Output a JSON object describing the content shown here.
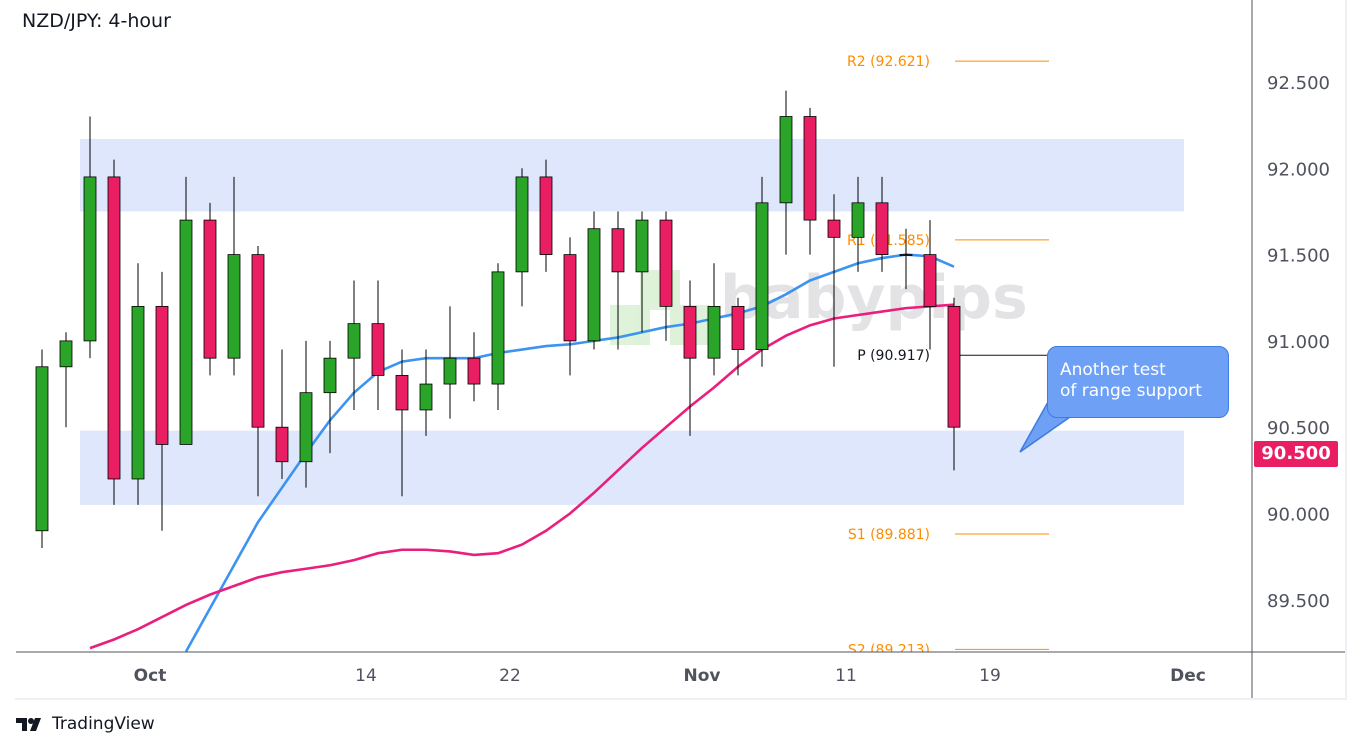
{
  "title": "NZD/JPY: 4-hour",
  "logo": {
    "text": "TradingView",
    "icon": "tradingview-logo-icon"
  },
  "watermark": {
    "text": "babypips",
    "icon": "babypips-cubes-icon"
  },
  "callout": {
    "line1": "Another test",
    "line2": "of range support"
  },
  "last_price": {
    "label": "90.500",
    "color": "#e91e63"
  },
  "colors": {
    "up": "#2aa52a",
    "down": "#e91e63",
    "ma_fast": "#3d94f0",
    "ma_slow": "#e91e7d",
    "zone": "#dfe7fc",
    "pivot_r_s": "#ff8c00",
    "pivot_p": "#131722"
  },
  "chart_data": {
    "type": "candlestick",
    "title": "NZD/JPY: 4-hour",
    "ylim": [
      89.2,
      92.98
    ],
    "grid": false,
    "y_ticks": [
      "92.500",
      "92.000",
      "91.500",
      "91.000",
      "90.500",
      "90.000",
      "89.500"
    ],
    "x_ticks": [
      {
        "label": "Oct",
        "date": "Oct 1"
      },
      {
        "label": "14",
        "date": "Oct 14"
      },
      {
        "label": "22",
        "date": "Oct 22"
      },
      {
        "label": "Nov",
        "date": "Nov 1"
      },
      {
        "label": "11",
        "date": "Nov 11"
      },
      {
        "label": "19",
        "date": "Nov 19"
      },
      {
        "label": "Dec",
        "date": "Dec 1"
      }
    ],
    "dates": [
      "Sep 24",
      "Sep 25",
      "Sep 26",
      "Sep 27",
      "Sep 30",
      "Oct 1",
      "Oct 2",
      "Oct 3",
      "Oct 4",
      "Oct 7",
      "Oct 8",
      "Oct 9",
      "Oct 10",
      "Oct 11",
      "Oct 14",
      "Oct 15",
      "Oct 16",
      "Oct 17",
      "Oct 18",
      "Oct 21",
      "Oct 22",
      "Oct 23",
      "Oct 24",
      "Oct 25",
      "Oct 28",
      "Oct 29",
      "Oct 30",
      "Oct 31",
      "Nov 1",
      "Nov 4",
      "Nov 5",
      "Nov 6",
      "Nov 7",
      "Nov 8",
      "Nov 11",
      "Nov 12",
      "Nov 13",
      "Nov 14",
      "Nov 15",
      "Nov 18",
      "Nov 19",
      "Nov 20",
      "Nov 21",
      "Nov 22",
      "Nov 25",
      "Nov 26",
      "Nov 27",
      "Nov 28",
      "Dec 1"
    ],
    "candles": [
      [
        "Sep 24",
        89.9,
        90.95,
        89.8,
        90.85
      ],
      [
        "Sep 25",
        90.85,
        91.05,
        90.5,
        91.0
      ],
      [
        "Sep 26",
        91.0,
        92.3,
        90.9,
        91.95
      ],
      [
        "Sep 27",
        91.95,
        92.05,
        90.05,
        90.2
      ],
      [
        "Sep 30",
        90.2,
        91.45,
        90.05,
        91.2
      ],
      [
        "Oct 1",
        91.2,
        91.4,
        89.9,
        90.4
      ],
      [
        "Oct 2",
        90.4,
        91.95,
        90.4,
        91.7
      ],
      [
        "Oct 3",
        91.7,
        91.8,
        90.8,
        90.9
      ],
      [
        "Oct 4",
        90.9,
        91.95,
        90.8,
        91.5
      ],
      [
        "Oct 7",
        91.5,
        91.55,
        90.1,
        90.5
      ],
      [
        "Oct 8",
        90.5,
        90.95,
        90.2,
        90.3
      ],
      [
        "Oct 9",
        90.3,
        91.0,
        90.15,
        90.7
      ],
      [
        "Oct 10",
        90.7,
        91.0,
        90.35,
        90.9
      ],
      [
        "Oct 11",
        90.9,
        91.35,
        90.6,
        91.1
      ],
      [
        "Oct 14",
        91.1,
        91.35,
        90.6,
        90.8
      ],
      [
        "Oct 15",
        90.8,
        90.95,
        90.1,
        90.6
      ],
      [
        "Oct 16",
        90.6,
        90.95,
        90.45,
        90.75
      ],
      [
        "Oct 17",
        90.75,
        91.2,
        90.55,
        90.9
      ],
      [
        "Oct 18",
        90.9,
        91.05,
        90.65,
        90.75
      ],
      [
        "Oct 21",
        90.75,
        91.45,
        90.6,
        91.4
      ],
      [
        "Oct 22",
        91.4,
        92.0,
        91.2,
        91.95
      ],
      [
        "Oct 23",
        91.95,
        92.05,
        91.4,
        91.5
      ],
      [
        "Oct 24",
        91.5,
        91.6,
        90.8,
        91.0
      ],
      [
        "Oct 25",
        91.0,
        91.75,
        90.95,
        91.65
      ],
      [
        "Oct 28",
        91.65,
        91.75,
        90.95,
        91.4
      ],
      [
        "Oct 29",
        91.4,
        91.75,
        91.05,
        91.7
      ],
      [
        "Oct 30",
        91.7,
        91.75,
        91.0,
        91.2
      ],
      [
        "Oct 31",
        91.2,
        91.35,
        90.45,
        90.9
      ],
      [
        "Nov 1",
        90.9,
        91.45,
        90.8,
        91.2
      ],
      [
        "Nov 4",
        91.2,
        91.25,
        90.8,
        90.95
      ],
      [
        "Nov 5",
        90.95,
        91.95,
        90.85,
        91.8
      ],
      [
        "Nov 6",
        91.8,
        92.45,
        91.5,
        92.3
      ],
      [
        "Nov 7",
        92.3,
        92.35,
        91.5,
        91.7
      ],
      [
        "Nov 8",
        91.7,
        91.85,
        90.85,
        91.6
      ],
      [
        "Nov 11",
        91.6,
        91.95,
        91.4,
        91.8
      ],
      [
        "Nov 12",
        91.8,
        91.95,
        91.4,
        91.5
      ],
      [
        "Nov 13",
        91.5,
        91.65,
        91.3,
        91.5
      ],
      [
        "Nov 14",
        91.5,
        91.7,
        90.95,
        91.2
      ],
      [
        "Nov 15",
        91.2,
        91.25,
        90.25,
        90.5
      ]
    ],
    "moving_averages": [
      {
        "color": "#3d94f0",
        "points": [
          [
            "Oct 2",
            89.2
          ],
          [
            "Oct 3",
            89.45
          ],
          [
            "Oct 4",
            89.7
          ],
          [
            "Oct 7",
            89.95
          ],
          [
            "Oct 8",
            90.15
          ],
          [
            "Oct 9",
            90.35
          ],
          [
            "Oct 10",
            90.54
          ],
          [
            "Oct 11",
            90.7
          ],
          [
            "Oct 14",
            90.82
          ],
          [
            "Oct 15",
            90.88
          ],
          [
            "Oct 16",
            90.9
          ],
          [
            "Oct 17",
            90.9
          ],
          [
            "Oct 18",
            90.9
          ],
          [
            "Oct 21",
            90.93
          ],
          [
            "Oct 22",
            90.95
          ],
          [
            "Oct 23",
            90.97
          ],
          [
            "Oct 24",
            90.98
          ],
          [
            "Oct 25",
            91.0
          ],
          [
            "Oct 28",
            91.02
          ],
          [
            "Oct 29",
            91.05
          ],
          [
            "Oct 30",
            91.08
          ],
          [
            "Oct 31",
            91.1
          ],
          [
            "Nov 1",
            91.13
          ],
          [
            "Nov 4",
            91.16
          ],
          [
            "Nov 5",
            91.2
          ],
          [
            "Nov 6",
            91.27
          ],
          [
            "Nov 7",
            91.35
          ],
          [
            "Nov 8",
            91.4
          ],
          [
            "Nov 11",
            91.45
          ],
          [
            "Nov 12",
            91.48
          ],
          [
            "Nov 13",
            91.5
          ],
          [
            "Nov 14",
            91.49
          ],
          [
            "Nov 15",
            91.43
          ]
        ]
      },
      {
        "color": "#e91e7d",
        "points": [
          [
            "Sep 26",
            89.22
          ],
          [
            "Sep 27",
            89.27
          ],
          [
            "Sep 30",
            89.33
          ],
          [
            "Oct 1",
            89.4
          ],
          [
            "Oct 2",
            89.47
          ],
          [
            "Oct 3",
            89.53
          ],
          [
            "Oct 4",
            89.58
          ],
          [
            "Oct 7",
            89.63
          ],
          [
            "Oct 8",
            89.66
          ],
          [
            "Oct 9",
            89.68
          ],
          [
            "Oct 10",
            89.7
          ],
          [
            "Oct 11",
            89.73
          ],
          [
            "Oct 14",
            89.77
          ],
          [
            "Oct 15",
            89.79
          ],
          [
            "Oct 16",
            89.79
          ],
          [
            "Oct 17",
            89.78
          ],
          [
            "Oct 18",
            89.76
          ],
          [
            "Oct 21",
            89.77
          ],
          [
            "Oct 22",
            89.82
          ],
          [
            "Oct 23",
            89.9
          ],
          [
            "Oct 24",
            90.0
          ],
          [
            "Oct 25",
            90.12
          ],
          [
            "Oct 28",
            90.25
          ],
          [
            "Oct 29",
            90.38
          ],
          [
            "Oct 30",
            90.5
          ],
          [
            "Oct 31",
            90.62
          ],
          [
            "Nov 1",
            90.73
          ],
          [
            "Nov 4",
            90.85
          ],
          [
            "Nov 5",
            90.95
          ],
          [
            "Nov 6",
            91.03
          ],
          [
            "Nov 7",
            91.09
          ],
          [
            "Nov 8",
            91.13
          ],
          [
            "Nov 11",
            91.15
          ],
          [
            "Nov 12",
            91.17
          ],
          [
            "Nov 13",
            91.19
          ],
          [
            "Nov 14",
            91.2
          ],
          [
            "Nov 15",
            91.21
          ]
        ]
      }
    ],
    "zones": [
      {
        "from": 91.75,
        "to": 92.17,
        "start": "Sep 26",
        "end": "Nov 28"
      },
      {
        "from": 90.05,
        "to": 90.48,
        "start": "Sep 26",
        "end": "Nov 28"
      }
    ],
    "pivots": [
      {
        "label": "R2 (92.621)",
        "value": 92.621,
        "kind": "r"
      },
      {
        "label": "R1 (91.585)",
        "value": 91.585,
        "kind": "r"
      },
      {
        "label": "P (90.917)",
        "value": 90.917,
        "kind": "p"
      },
      {
        "label": "S1 (89.881)",
        "value": 89.881,
        "kind": "s"
      },
      {
        "label": "S2 (89.213)",
        "value": 89.213,
        "kind": "s"
      }
    ],
    "pivot_range": {
      "start": "Nov 15",
      "end": "Nov 20"
    }
  }
}
